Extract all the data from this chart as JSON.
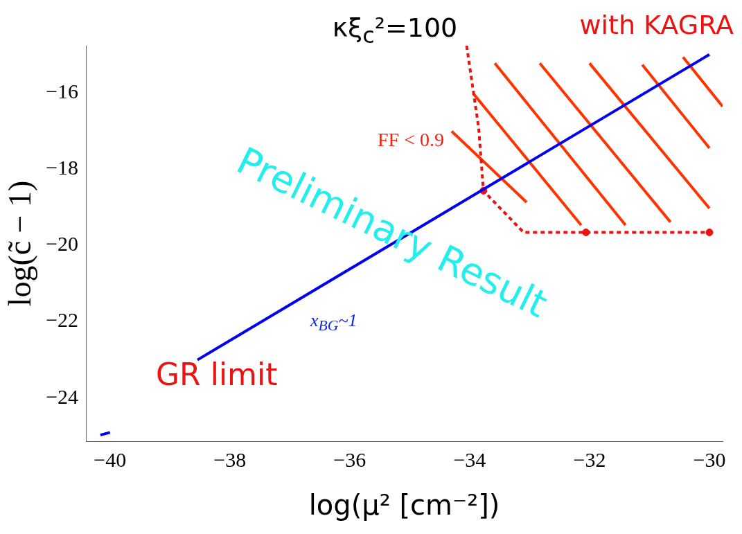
{
  "chart_data": {
    "type": "line",
    "title": "κξ$_{c}$²=100",
    "xlabel": "log(μ² [cm⁻²])",
    "ylabel": "log(c̃ − 1)",
    "xlim": [
      -40.4,
      -29.78
    ],
    "ylim": [
      -25.13,
      -14.77
    ],
    "xticks": [
      -40,
      -38,
      -36,
      -34,
      -32,
      -30
    ],
    "yticks": [
      -24,
      -22,
      -20,
      -18,
      -16
    ],
    "grid": false,
    "legend": false,
    "marker": "none",
    "series": [
      {
        "color": "#0000ee",
        "x": [
          -40.16,
          -40.0,
          -39.0,
          -38.54,
          -30.0
        ],
        "values": [
          -24.97,
          -24.9,
          null,
          -23.0,
          -15.0
        ]
      },
      {
        "color": "#ee1111",
        "line_style": "dashed",
        "x": [
          -34.05,
          -33.85,
          -33.77,
          -33.1,
          -32.06,
          -30.0
        ],
        "values": [
          -14.77,
          -16.91,
          -18.57,
          -19.66,
          -19.66,
          -19.66
        ]
      },
      {
        "type": "scatter",
        "marker": "circle",
        "color": "#ee1111",
        "x": [
          -33.77,
          -32.06,
          -30.0
        ],
        "values": [
          -18.57,
          -19.66,
          -19.66
        ]
      },
      {
        "color": "#ff3300",
        "x": [
          -34.3,
          -33.05
        ],
        "values": [
          -17.01,
          -18.87
        ]
      },
      {
        "color": "#ff3300",
        "x": [
          -33.94,
          -32.14
        ],
        "values": [
          -16.02,
          -19.47
        ]
      },
      {
        "color": "#ff3300",
        "x": [
          -33.58,
          -31.4
        ],
        "values": [
          -15.23,
          -19.47
        ]
      },
      {
        "color": "#ff3300",
        "x": [
          -32.83,
          -30.65
        ],
        "values": [
          -15.23,
          -19.39
        ]
      },
      {
        "color": "#ff3300",
        "x": [
          -32.0,
          -30.0
        ],
        "values": [
          -15.23,
          -19.03
        ]
      },
      {
        "color": "#ff3300",
        "x": [
          -31.12,
          -30.0
        ],
        "values": [
          -15.27,
          -17.45
        ]
      },
      {
        "color": "#ff3300",
        "x": [
          -30.44,
          -29.78
        ],
        "values": [
          -15.07,
          -16.36
        ]
      }
    ],
    "annotations": [
      "FF < 0.9",
      "x$_{BG}$~1",
      "GR limit",
      "Preliminary Result",
      "with KAGRA"
    ]
  }
}
